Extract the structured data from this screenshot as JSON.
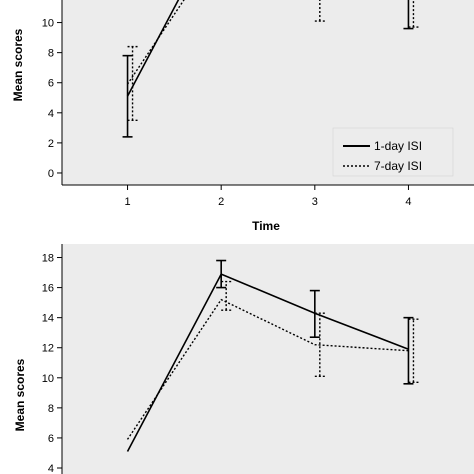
{
  "chart_data": [
    {
      "type": "line",
      "xlabel": "Time",
      "ylabel": "Mean scores",
      "x": [
        1,
        2,
        3,
        4
      ],
      "x_ticks": [
        "1",
        "2",
        "3",
        "4"
      ],
      "y_ticks": [
        "0",
        "2",
        "4",
        "6",
        "8",
        "10"
      ],
      "xlim": [
        0.3,
        4.7
      ],
      "ylim": [
        -0.8,
        11.5
      ],
      "background": "#ececec",
      "legend": "bottom-right",
      "series": [
        {
          "name": "1-day ISI",
          "style": "solid",
          "values": [
            5.1,
            16.9,
            14.3,
            11.9
          ],
          "error_low": [
            2.4,
            16.0,
            12.7,
            9.6
          ],
          "error_high": [
            7.8,
            17.8,
            15.8,
            14.0
          ]
        },
        {
          "name": "7-day ISI",
          "style": "dotted",
          "values": [
            5.9,
            15.2,
            12.2,
            11.8
          ],
          "error_low": [
            3.5,
            14.5,
            10.1,
            9.7
          ],
          "error_high": [
            8.4,
            16.4,
            14.3,
            13.9
          ]
        }
      ]
    },
    {
      "type": "line",
      "xlabel": "",
      "ylabel": "Mean scores",
      "x": [
        1,
        2,
        3,
        4
      ],
      "y_ticks": [
        "4",
        "6",
        "8",
        "10",
        "12",
        "14",
        "16",
        "18"
      ],
      "xlim": [
        0.3,
        4.7
      ],
      "ylim": [
        3.6,
        18.9
      ],
      "background": "#ececec",
      "series": [
        {
          "name": "1-day ISI",
          "style": "solid",
          "values": [
            null,
            16.9,
            14.3,
            11.9
          ],
          "error_low": [
            null,
            16.0,
            12.7,
            9.6
          ],
          "error_high": [
            null,
            17.8,
            15.8,
            14.0
          ]
        },
        {
          "name": "7-day ISI",
          "style": "dotted",
          "values": [
            null,
            15.2,
            12.2,
            11.8
          ],
          "error_low": [
            null,
            14.5,
            10.1,
            9.7
          ],
          "error_high": [
            null,
            16.4,
            14.3,
            13.9
          ]
        }
      ]
    }
  ]
}
